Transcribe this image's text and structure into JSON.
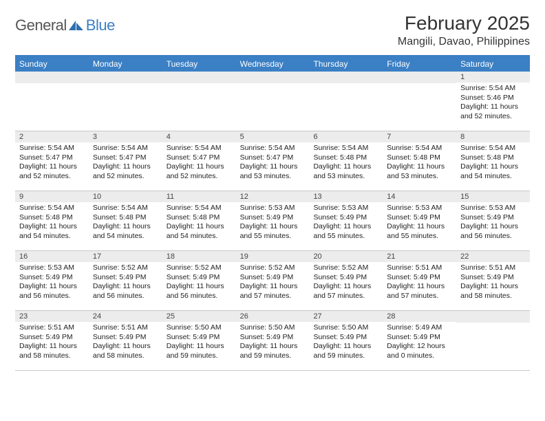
{
  "logo": {
    "general": "General",
    "blue": "Blue"
  },
  "title": "February 2025",
  "location": "Mangili, Davao, Philippines",
  "colors": {
    "header_bg": "#3b7fc4",
    "header_text": "#ffffff",
    "daynum_bg": "#ececec",
    "text": "#222222",
    "border": "#c8c8c8"
  },
  "fonts": {
    "title_size_pt": 21,
    "location_size_pt": 12,
    "dayhead_size_pt": 9,
    "cell_size_pt": 8
  },
  "day_names": [
    "Sunday",
    "Monday",
    "Tuesday",
    "Wednesday",
    "Thursday",
    "Friday",
    "Saturday"
  ],
  "weeks": [
    [
      {
        "n": "",
        "lines": []
      },
      {
        "n": "",
        "lines": []
      },
      {
        "n": "",
        "lines": []
      },
      {
        "n": "",
        "lines": []
      },
      {
        "n": "",
        "lines": []
      },
      {
        "n": "",
        "lines": []
      },
      {
        "n": "1",
        "lines": [
          "Sunrise: 5:54 AM",
          "Sunset: 5:46 PM",
          "Daylight: 11 hours and 52 minutes."
        ]
      }
    ],
    [
      {
        "n": "2",
        "lines": [
          "Sunrise: 5:54 AM",
          "Sunset: 5:47 PM",
          "Daylight: 11 hours and 52 minutes."
        ]
      },
      {
        "n": "3",
        "lines": [
          "Sunrise: 5:54 AM",
          "Sunset: 5:47 PM",
          "Daylight: 11 hours and 52 minutes."
        ]
      },
      {
        "n": "4",
        "lines": [
          "Sunrise: 5:54 AM",
          "Sunset: 5:47 PM",
          "Daylight: 11 hours and 52 minutes."
        ]
      },
      {
        "n": "5",
        "lines": [
          "Sunrise: 5:54 AM",
          "Sunset: 5:47 PM",
          "Daylight: 11 hours and 53 minutes."
        ]
      },
      {
        "n": "6",
        "lines": [
          "Sunrise: 5:54 AM",
          "Sunset: 5:48 PM",
          "Daylight: 11 hours and 53 minutes."
        ]
      },
      {
        "n": "7",
        "lines": [
          "Sunrise: 5:54 AM",
          "Sunset: 5:48 PM",
          "Daylight: 11 hours and 53 minutes."
        ]
      },
      {
        "n": "8",
        "lines": [
          "Sunrise: 5:54 AM",
          "Sunset: 5:48 PM",
          "Daylight: 11 hours and 54 minutes."
        ]
      }
    ],
    [
      {
        "n": "9",
        "lines": [
          "Sunrise: 5:54 AM",
          "Sunset: 5:48 PM",
          "Daylight: 11 hours and 54 minutes."
        ]
      },
      {
        "n": "10",
        "lines": [
          "Sunrise: 5:54 AM",
          "Sunset: 5:48 PM",
          "Daylight: 11 hours and 54 minutes."
        ]
      },
      {
        "n": "11",
        "lines": [
          "Sunrise: 5:54 AM",
          "Sunset: 5:48 PM",
          "Daylight: 11 hours and 54 minutes."
        ]
      },
      {
        "n": "12",
        "lines": [
          "Sunrise: 5:53 AM",
          "Sunset: 5:49 PM",
          "Daylight: 11 hours and 55 minutes."
        ]
      },
      {
        "n": "13",
        "lines": [
          "Sunrise: 5:53 AM",
          "Sunset: 5:49 PM",
          "Daylight: 11 hours and 55 minutes."
        ]
      },
      {
        "n": "14",
        "lines": [
          "Sunrise: 5:53 AM",
          "Sunset: 5:49 PM",
          "Daylight: 11 hours and 55 minutes."
        ]
      },
      {
        "n": "15",
        "lines": [
          "Sunrise: 5:53 AM",
          "Sunset: 5:49 PM",
          "Daylight: 11 hours and 56 minutes."
        ]
      }
    ],
    [
      {
        "n": "16",
        "lines": [
          "Sunrise: 5:53 AM",
          "Sunset: 5:49 PM",
          "Daylight: 11 hours and 56 minutes."
        ]
      },
      {
        "n": "17",
        "lines": [
          "Sunrise: 5:52 AM",
          "Sunset: 5:49 PM",
          "Daylight: 11 hours and 56 minutes."
        ]
      },
      {
        "n": "18",
        "lines": [
          "Sunrise: 5:52 AM",
          "Sunset: 5:49 PM",
          "Daylight: 11 hours and 56 minutes."
        ]
      },
      {
        "n": "19",
        "lines": [
          "Sunrise: 5:52 AM",
          "Sunset: 5:49 PM",
          "Daylight: 11 hours and 57 minutes."
        ]
      },
      {
        "n": "20",
        "lines": [
          "Sunrise: 5:52 AM",
          "Sunset: 5:49 PM",
          "Daylight: 11 hours and 57 minutes."
        ]
      },
      {
        "n": "21",
        "lines": [
          "Sunrise: 5:51 AM",
          "Sunset: 5:49 PM",
          "Daylight: 11 hours and 57 minutes."
        ]
      },
      {
        "n": "22",
        "lines": [
          "Sunrise: 5:51 AM",
          "Sunset: 5:49 PM",
          "Daylight: 11 hours and 58 minutes."
        ]
      }
    ],
    [
      {
        "n": "23",
        "lines": [
          "Sunrise: 5:51 AM",
          "Sunset: 5:49 PM",
          "Daylight: 11 hours and 58 minutes."
        ]
      },
      {
        "n": "24",
        "lines": [
          "Sunrise: 5:51 AM",
          "Sunset: 5:49 PM",
          "Daylight: 11 hours and 58 minutes."
        ]
      },
      {
        "n": "25",
        "lines": [
          "Sunrise: 5:50 AM",
          "Sunset: 5:49 PM",
          "Daylight: 11 hours and 59 minutes."
        ]
      },
      {
        "n": "26",
        "lines": [
          "Sunrise: 5:50 AM",
          "Sunset: 5:49 PM",
          "Daylight: 11 hours and 59 minutes."
        ]
      },
      {
        "n": "27",
        "lines": [
          "Sunrise: 5:50 AM",
          "Sunset: 5:49 PM",
          "Daylight: 11 hours and 59 minutes."
        ]
      },
      {
        "n": "28",
        "lines": [
          "Sunrise: 5:49 AM",
          "Sunset: 5:49 PM",
          "Daylight: 12 hours and 0 minutes."
        ]
      },
      {
        "n": "",
        "lines": []
      }
    ]
  ]
}
